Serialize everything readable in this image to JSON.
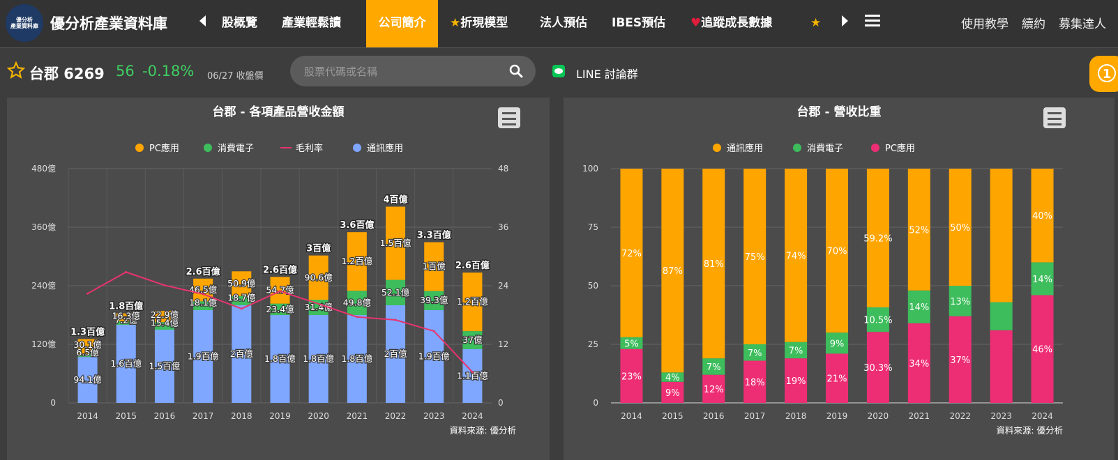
{
  "header": {
    "logo_text": "優分析\n產業資料庫",
    "brand": "優分析產業資料庫",
    "nav": [
      {
        "label": "股概覽",
        "active": false,
        "prefix": ""
      },
      {
        "label": "產業輕鬆讀",
        "active": false,
        "prefix": ""
      },
      {
        "label": "公司簡介",
        "active": true,
        "prefix": ""
      },
      {
        "label": "折現模型",
        "active": false,
        "prefix": "star"
      },
      {
        "label": "法人預估",
        "active": false,
        "prefix": ""
      },
      {
        "label": "IBES預估",
        "active": false,
        "prefix": ""
      },
      {
        "label": "追蹤成長數據",
        "active": false,
        "prefix": "heart"
      },
      {
        "label": "",
        "active": false,
        "prefix": "star"
      }
    ],
    "right_links": [
      "使用教學",
      "續約",
      "募集達人"
    ]
  },
  "stock": {
    "name": "台郡 6269",
    "price": "56",
    "change": "-0.18%",
    "date": "06/27 收盤價"
  },
  "search": {
    "placeholder": "股票代碼或名稱"
  },
  "line_group": "LINE 討論群",
  "notification_count": "1",
  "colors": {
    "accent": "#ffa800",
    "pc": "#ffa500",
    "consumer": "#3dbd5c",
    "comm": "#7fa7ff",
    "margin": "#e8336d",
    "pc_share": "#ee2e74"
  },
  "chart_data": [
    {
      "type": "bar",
      "stacked": true,
      "title": "台郡 - 各項產品營收金額",
      "source": "資料來源: 優分析",
      "categories": [
        "2014",
        "2015",
        "2016",
        "2017",
        "2018",
        "2019",
        "2020",
        "2021",
        "2022",
        "2023",
        "2024"
      ],
      "ylim": [
        0,
        480
      ],
      "yticks": [
        "0",
        "120億",
        "240億",
        "360億",
        "480億"
      ],
      "y2lim": [
        0,
        48
      ],
      "y2ticks": [
        "0",
        "12",
        "24",
        "36",
        "48"
      ],
      "legend": [
        "PC應用",
        "消費電子",
        "毛利率",
        "通訊應用"
      ],
      "series": [
        {
          "name": "通訊應用",
          "values": [
            94.1,
            160,
            150,
            190,
            200,
            180,
            180,
            180,
            200,
            190,
            110
          ],
          "labels": [
            "94.1億",
            "1.6百億",
            "1.5百億",
            "1.9百億",
            "2百億",
            "1.8百億",
            "1.8百億",
            "1.8百億",
            "2百億",
            "1.9百億",
            "1.1百億"
          ]
        },
        {
          "name": "消費電子",
          "values": [
            6.5,
            7.2,
            15.4,
            18.1,
            18.7,
            23.4,
            31.4,
            49.8,
            52.1,
            39.3,
            37
          ],
          "labels": [
            "6.5億",
            "7.2億",
            "15.4億",
            "18.1億",
            "18.7億",
            "23.4億",
            "31.4億",
            "49.8億",
            "52.1億",
            "39.3億",
            "37億"
          ]
        },
        {
          "name": "PC應用",
          "values": [
            30.1,
            16.3,
            22.9,
            46.5,
            50.9,
            54.7,
            90.6,
            120,
            150,
            100,
            120
          ],
          "labels": [
            "30.1億",
            "16.3億",
            "22.9億",
            "46.5億",
            "50.9億",
            "54.7億",
            "90.6億",
            "1.2百億",
            "1.5百億",
            "1百億",
            "1.2百億"
          ]
        },
        {
          "name": "毛利率",
          "axis": "right",
          "values": [
            22.4,
            26.8,
            24.1,
            22.3,
            19.3,
            22.9,
            20.3,
            17.6,
            17.0,
            14.7,
            6.3
          ]
        }
      ],
      "totals": [
        "1.3百億",
        "1.8百億",
        "",
        "2.6百億",
        "",
        "2.6百億",
        "3百億",
        "3.6百億",
        "4百億",
        "3.3百億",
        "2.6百億"
      ]
    },
    {
      "type": "bar",
      "stacked": true,
      "title": "台郡 - 營收比重",
      "source": "資料來源: 優分析",
      "categories": [
        "2014",
        "2015",
        "2016",
        "2017",
        "2018",
        "2019",
        "2020",
        "2021",
        "2022",
        "2023",
        "2024"
      ],
      "ylim": [
        0,
        100
      ],
      "yticks": [
        "0",
        "25",
        "50",
        "75",
        "100"
      ],
      "legend": [
        "通訊應用",
        "消費電子",
        "PC應用"
      ],
      "series": [
        {
          "name": "PC應用",
          "values": [
            23,
            9,
            12,
            18,
            19,
            21,
            30.3,
            34,
            37,
            null,
            46
          ],
          "labels": [
            "23%",
            "9%",
            "12%",
            "18%",
            "19%",
            "21%",
            "30.3%",
            "34%",
            "37%",
            "",
            "46%"
          ]
        },
        {
          "name": "消費電子",
          "values": [
            5,
            4,
            7,
            7,
            7,
            9,
            10.5,
            14,
            13,
            null,
            14
          ],
          "labels": [
            "5%",
            "4%",
            "7%",
            "7%",
            "7%",
            "9%",
            "10.5%",
            "14%",
            "13%",
            "",
            "14%"
          ]
        },
        {
          "name": "通訊應用",
          "values": [
            72,
            87,
            81,
            75,
            74,
            70,
            59.2,
            52,
            50,
            null,
            40
          ],
          "labels": [
            "72%",
            "87%",
            "81%",
            "75%",
            "74%",
            "70%",
            "59.2%",
            "52%",
            "50%",
            "",
            "40%"
          ]
        }
      ]
    }
  ]
}
